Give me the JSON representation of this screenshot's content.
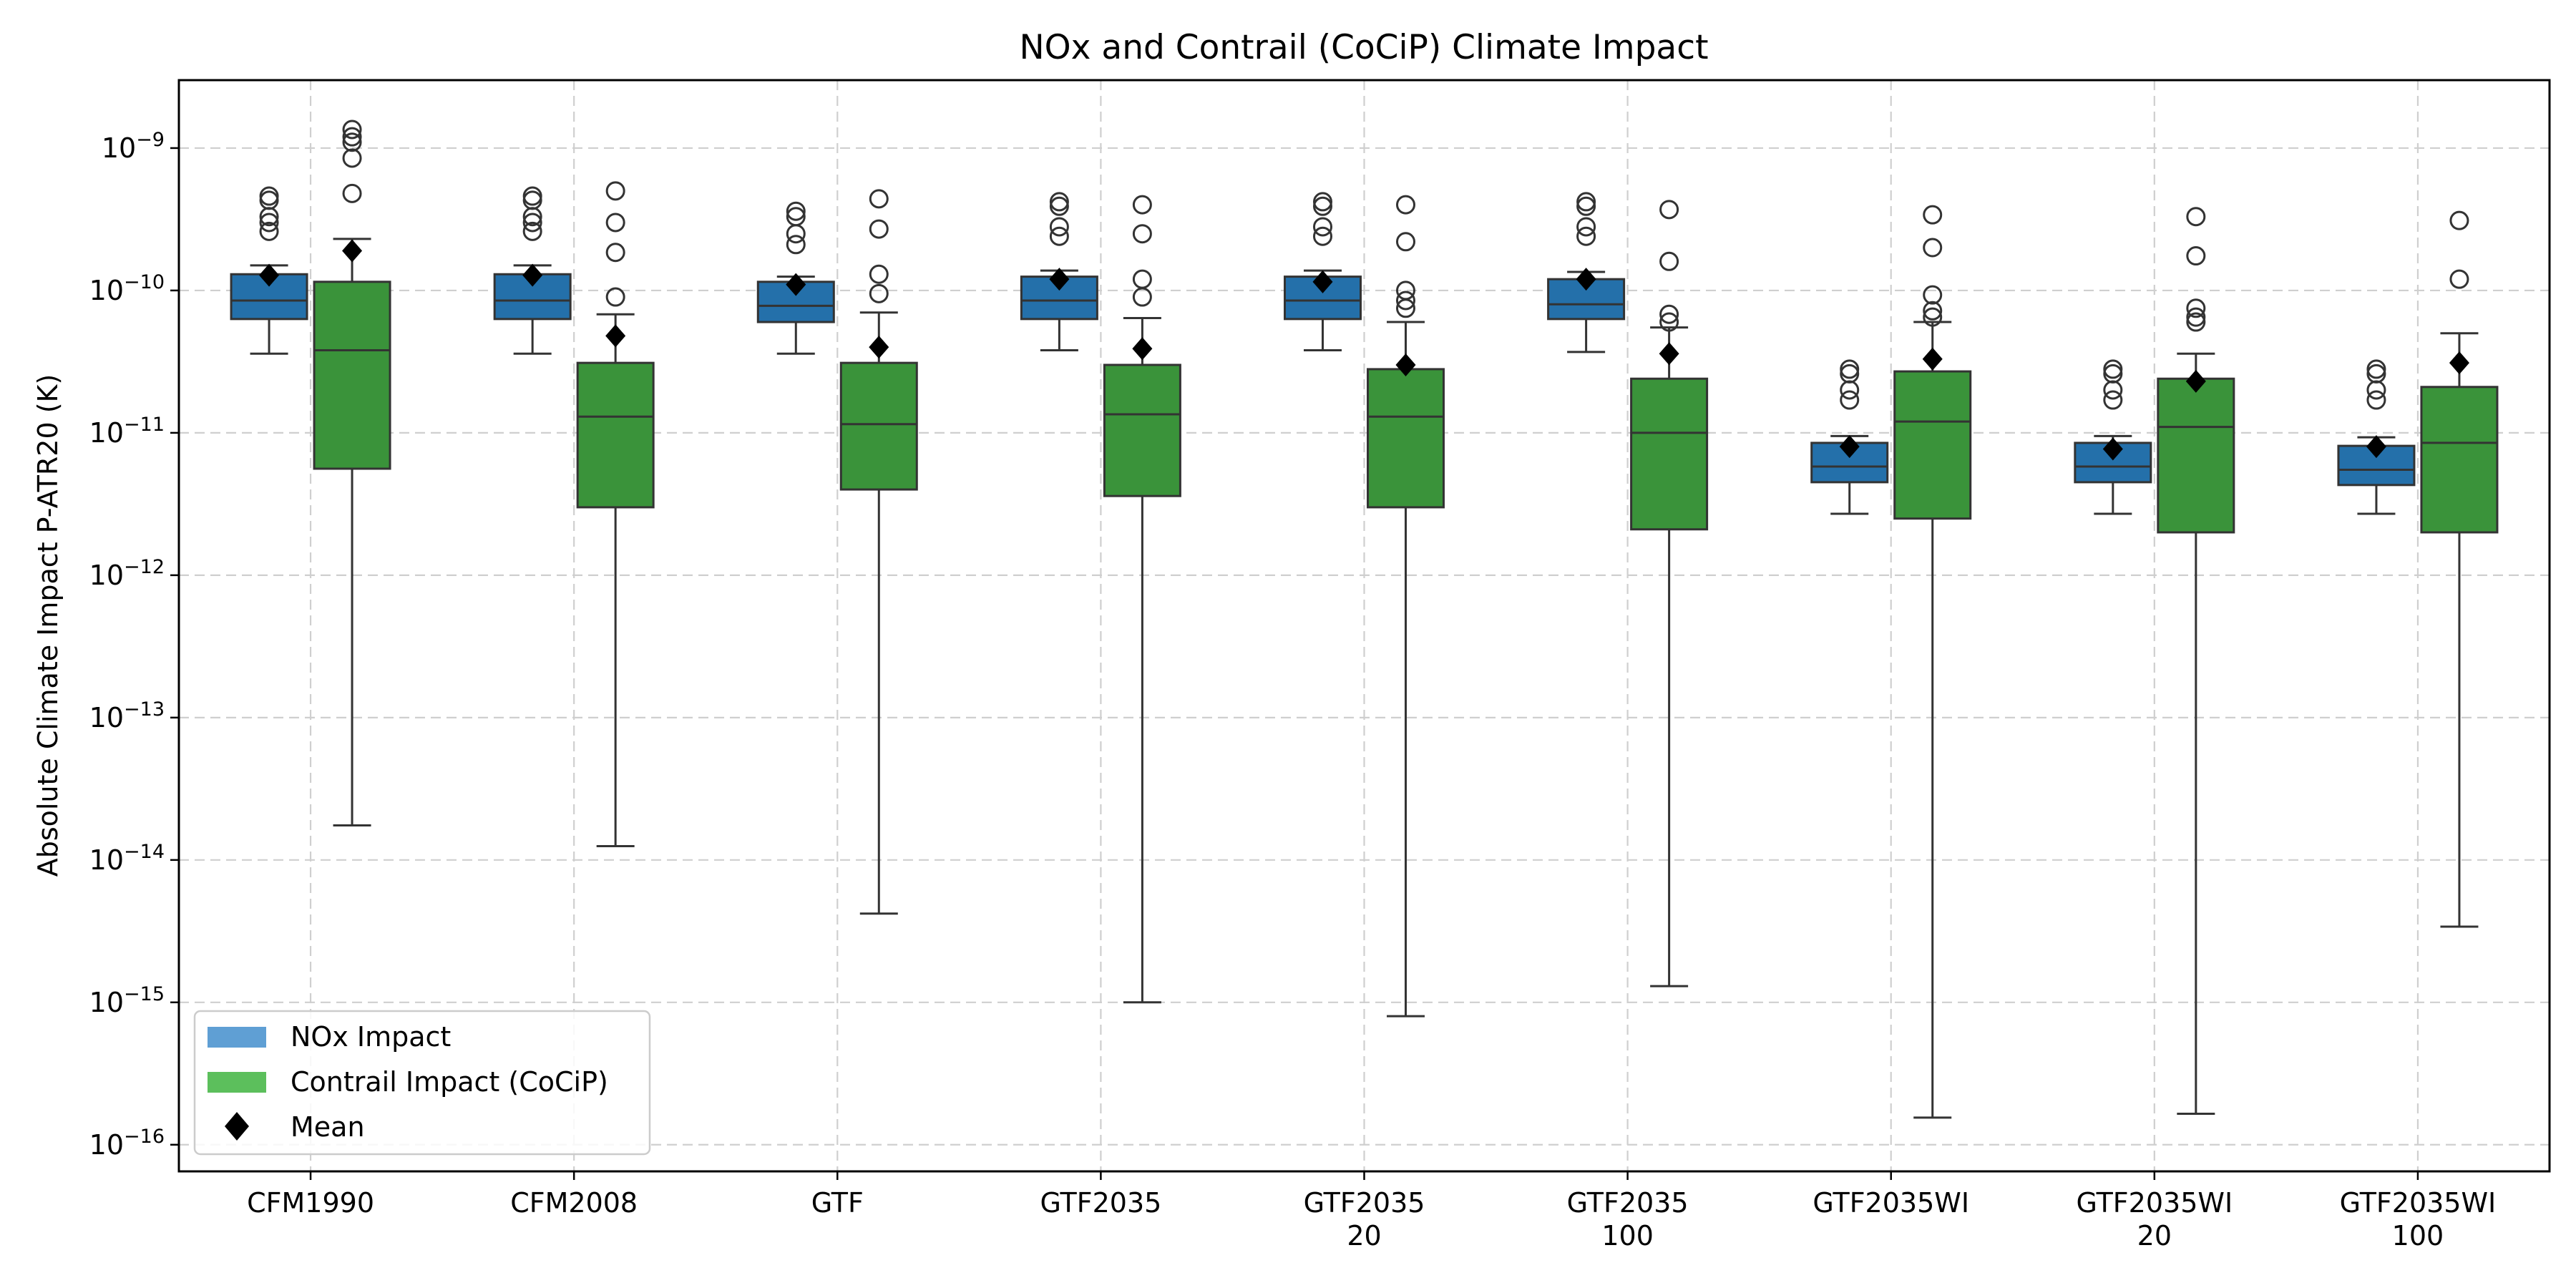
{
  "chart_data": {
    "type": "box",
    "title": "NOx and Contrail (CoCiP) Climate Impact",
    "ylabel": "Absolute Climate Impact P-ATR20 (K)",
    "xlabel": "",
    "yscale": "log",
    "ylim": [
      6.5e-17,
      3e-09
    ],
    "grid": true,
    "legend_position": "lower-left",
    "y_ticks": [
      {
        "value": 1e-16,
        "base": "10",
        "exp": "−16"
      },
      {
        "value": 1e-15,
        "base": "10",
        "exp": "−15"
      },
      {
        "value": 1e-14,
        "base": "10",
        "exp": "−14"
      },
      {
        "value": 1e-13,
        "base": "10",
        "exp": "−13"
      },
      {
        "value": 1e-12,
        "base": "10",
        "exp": "−12"
      },
      {
        "value": 1e-11,
        "base": "10",
        "exp": "−11"
      },
      {
        "value": 1e-10,
        "base": "10",
        "exp": "−10"
      },
      {
        "value": 1e-09,
        "base": "10",
        "exp": "−9"
      }
    ],
    "categories": [
      [
        "CFM1990"
      ],
      [
        "CFM2008"
      ],
      [
        "GTF"
      ],
      [
        "GTF2035"
      ],
      [
        "GTF2035",
        "20"
      ],
      [
        "GTF2035",
        "100"
      ],
      [
        "GTF2035WI"
      ],
      [
        "GTF2035WI",
        "20"
      ],
      [
        "GTF2035WI",
        "100"
      ]
    ],
    "legend": [
      {
        "label": "NOx Impact",
        "kind": "patch",
        "color": "#5f9fd4"
      },
      {
        "label": "Contrail Impact (CoCiP)",
        "kind": "patch",
        "color": "#5cbf5c"
      },
      {
        "label": "Mean",
        "kind": "diamond",
        "color": "#000000"
      }
    ],
    "series": [
      {
        "name": "NOx Impact",
        "color": "#2470aa",
        "boxes": [
          {
            "whislo": 3.6e-11,
            "q1": 6.3e-11,
            "med": 8.5e-11,
            "q3": 1.3e-10,
            "whishi": 1.5e-10,
            "mean": 1.28e-10,
            "fliers": [
              2.6e-10,
              3e-10,
              3.3e-10,
              4.3e-10,
              4.6e-10
            ]
          },
          {
            "whislo": 3.6e-11,
            "q1": 6.3e-11,
            "med": 8.5e-11,
            "q3": 1.3e-10,
            "whishi": 1.5e-10,
            "mean": 1.28e-10,
            "fliers": [
              2.6e-10,
              3e-10,
              3.3e-10,
              4.3e-10,
              4.6e-10
            ]
          },
          {
            "whislo": 3.6e-11,
            "q1": 6e-11,
            "med": 7.8e-11,
            "q3": 1.15e-10,
            "whishi": 1.25e-10,
            "mean": 1.1e-10,
            "fliers": [
              2.1e-10,
              2.5e-10,
              3.3e-10,
              3.6e-10
            ]
          },
          {
            "whislo": 3.8e-11,
            "q1": 6.3e-11,
            "med": 8.5e-11,
            "q3": 1.25e-10,
            "whishi": 1.38e-10,
            "mean": 1.2e-10,
            "fliers": [
              2.4e-10,
              2.8e-10,
              3.9e-10,
              4.2e-10
            ]
          },
          {
            "whislo": 3.8e-11,
            "q1": 6.3e-11,
            "med": 8.5e-11,
            "q3": 1.25e-10,
            "whishi": 1.38e-10,
            "mean": 1.15e-10,
            "fliers": [
              2.4e-10,
              2.8e-10,
              3.9e-10,
              4.2e-10
            ]
          },
          {
            "whislo": 3.7e-11,
            "q1": 6.3e-11,
            "med": 8e-11,
            "q3": 1.2e-10,
            "whishi": 1.35e-10,
            "mean": 1.2e-10,
            "fliers": [
              2.4e-10,
              2.8e-10,
              3.9e-10,
              4.2e-10
            ]
          },
          {
            "whislo": 2.7e-12,
            "q1": 4.5e-12,
            "med": 5.8e-12,
            "q3": 8.5e-12,
            "whishi": 9.5e-12,
            "mean": 8e-12,
            "fliers": [
              1.7e-11,
              2e-11,
              2.6e-11,
              2.8e-11
            ]
          },
          {
            "whislo": 2.7e-12,
            "q1": 4.5e-12,
            "med": 5.8e-12,
            "q3": 8.5e-12,
            "whishi": 9.5e-12,
            "mean": 7.7e-12,
            "fliers": [
              1.7e-11,
              2e-11,
              2.6e-11,
              2.8e-11
            ]
          },
          {
            "whislo": 2.7e-12,
            "q1": 4.3e-12,
            "med": 5.5e-12,
            "q3": 8.1e-12,
            "whishi": 9.3e-12,
            "mean": 8e-12,
            "fliers": [
              1.7e-11,
              2e-11,
              2.6e-11,
              2.8e-11
            ]
          }
        ]
      },
      {
        "name": "Contrail Impact (CoCiP)",
        "color": "#3a933a",
        "boxes": [
          {
            "whislo": 1.75e-14,
            "q1": 5.6e-12,
            "med": 3.8e-11,
            "q3": 1.15e-10,
            "whishi": 2.3e-10,
            "mean": 1.9e-10,
            "fliers": [
              4.8e-10,
              8.5e-10,
              1.1e-09,
              1.2e-09,
              1.35e-09
            ]
          },
          {
            "whislo": 1.25e-14,
            "q1": 3e-12,
            "med": 1.3e-11,
            "q3": 3.1e-11,
            "whishi": 6.8e-11,
            "mean": 4.8e-11,
            "fliers": [
              9e-11,
              1.85e-10,
              3e-10,
              5e-10
            ]
          },
          {
            "whislo": 4.2e-15,
            "q1": 4e-12,
            "med": 1.15e-11,
            "q3": 3.1e-11,
            "whishi": 7e-11,
            "mean": 4e-11,
            "fliers": [
              9.5e-11,
              1.3e-10,
              2.7e-10,
              4.4e-10
            ]
          },
          {
            "whislo": 1e-15,
            "q1": 3.6e-12,
            "med": 1.35e-11,
            "q3": 3e-11,
            "whishi": 6.4e-11,
            "mean": 3.9e-11,
            "fliers": [
              9e-11,
              1.2e-10,
              2.5e-10,
              4e-10
            ]
          },
          {
            "whislo": 8e-16,
            "q1": 3e-12,
            "med": 1.3e-11,
            "q3": 2.8e-11,
            "whishi": 6e-11,
            "mean": 3e-11,
            "fliers": [
              7.5e-11,
              8.5e-11,
              1e-10,
              2.2e-10,
              4e-10
            ]
          },
          {
            "whislo": 1.3e-15,
            "q1": 2.1e-12,
            "med": 1e-11,
            "q3": 2.4e-11,
            "whishi": 5.5e-11,
            "mean": 3.6e-11,
            "fliers": [
              6e-11,
              6.8e-11,
              1.6e-10,
              3.7e-10
            ]
          },
          {
            "whislo": 1.55e-16,
            "q1": 2.5e-12,
            "med": 1.2e-11,
            "q3": 2.7e-11,
            "whishi": 6e-11,
            "mean": 3.3e-11,
            "fliers": [
              6.5e-11,
              7.2e-11,
              9.3e-11,
              2e-10,
              3.4e-10
            ]
          },
          {
            "whislo": 1.65e-16,
            "q1": 2e-12,
            "med": 1.1e-11,
            "q3": 2.4e-11,
            "whishi": 3.6e-11,
            "mean": 2.3e-11,
            "fliers": [
              6e-11,
              6.5e-11,
              7.5e-11,
              1.75e-10,
              3.3e-10
            ]
          },
          {
            "whislo": 3.4e-15,
            "q1": 2e-12,
            "med": 8.5e-12,
            "q3": 2.1e-11,
            "whishi": 5e-11,
            "mean": 3.1e-11,
            "fliers": [
              1.2e-10,
              3.1e-10
            ]
          }
        ]
      }
    ]
  }
}
